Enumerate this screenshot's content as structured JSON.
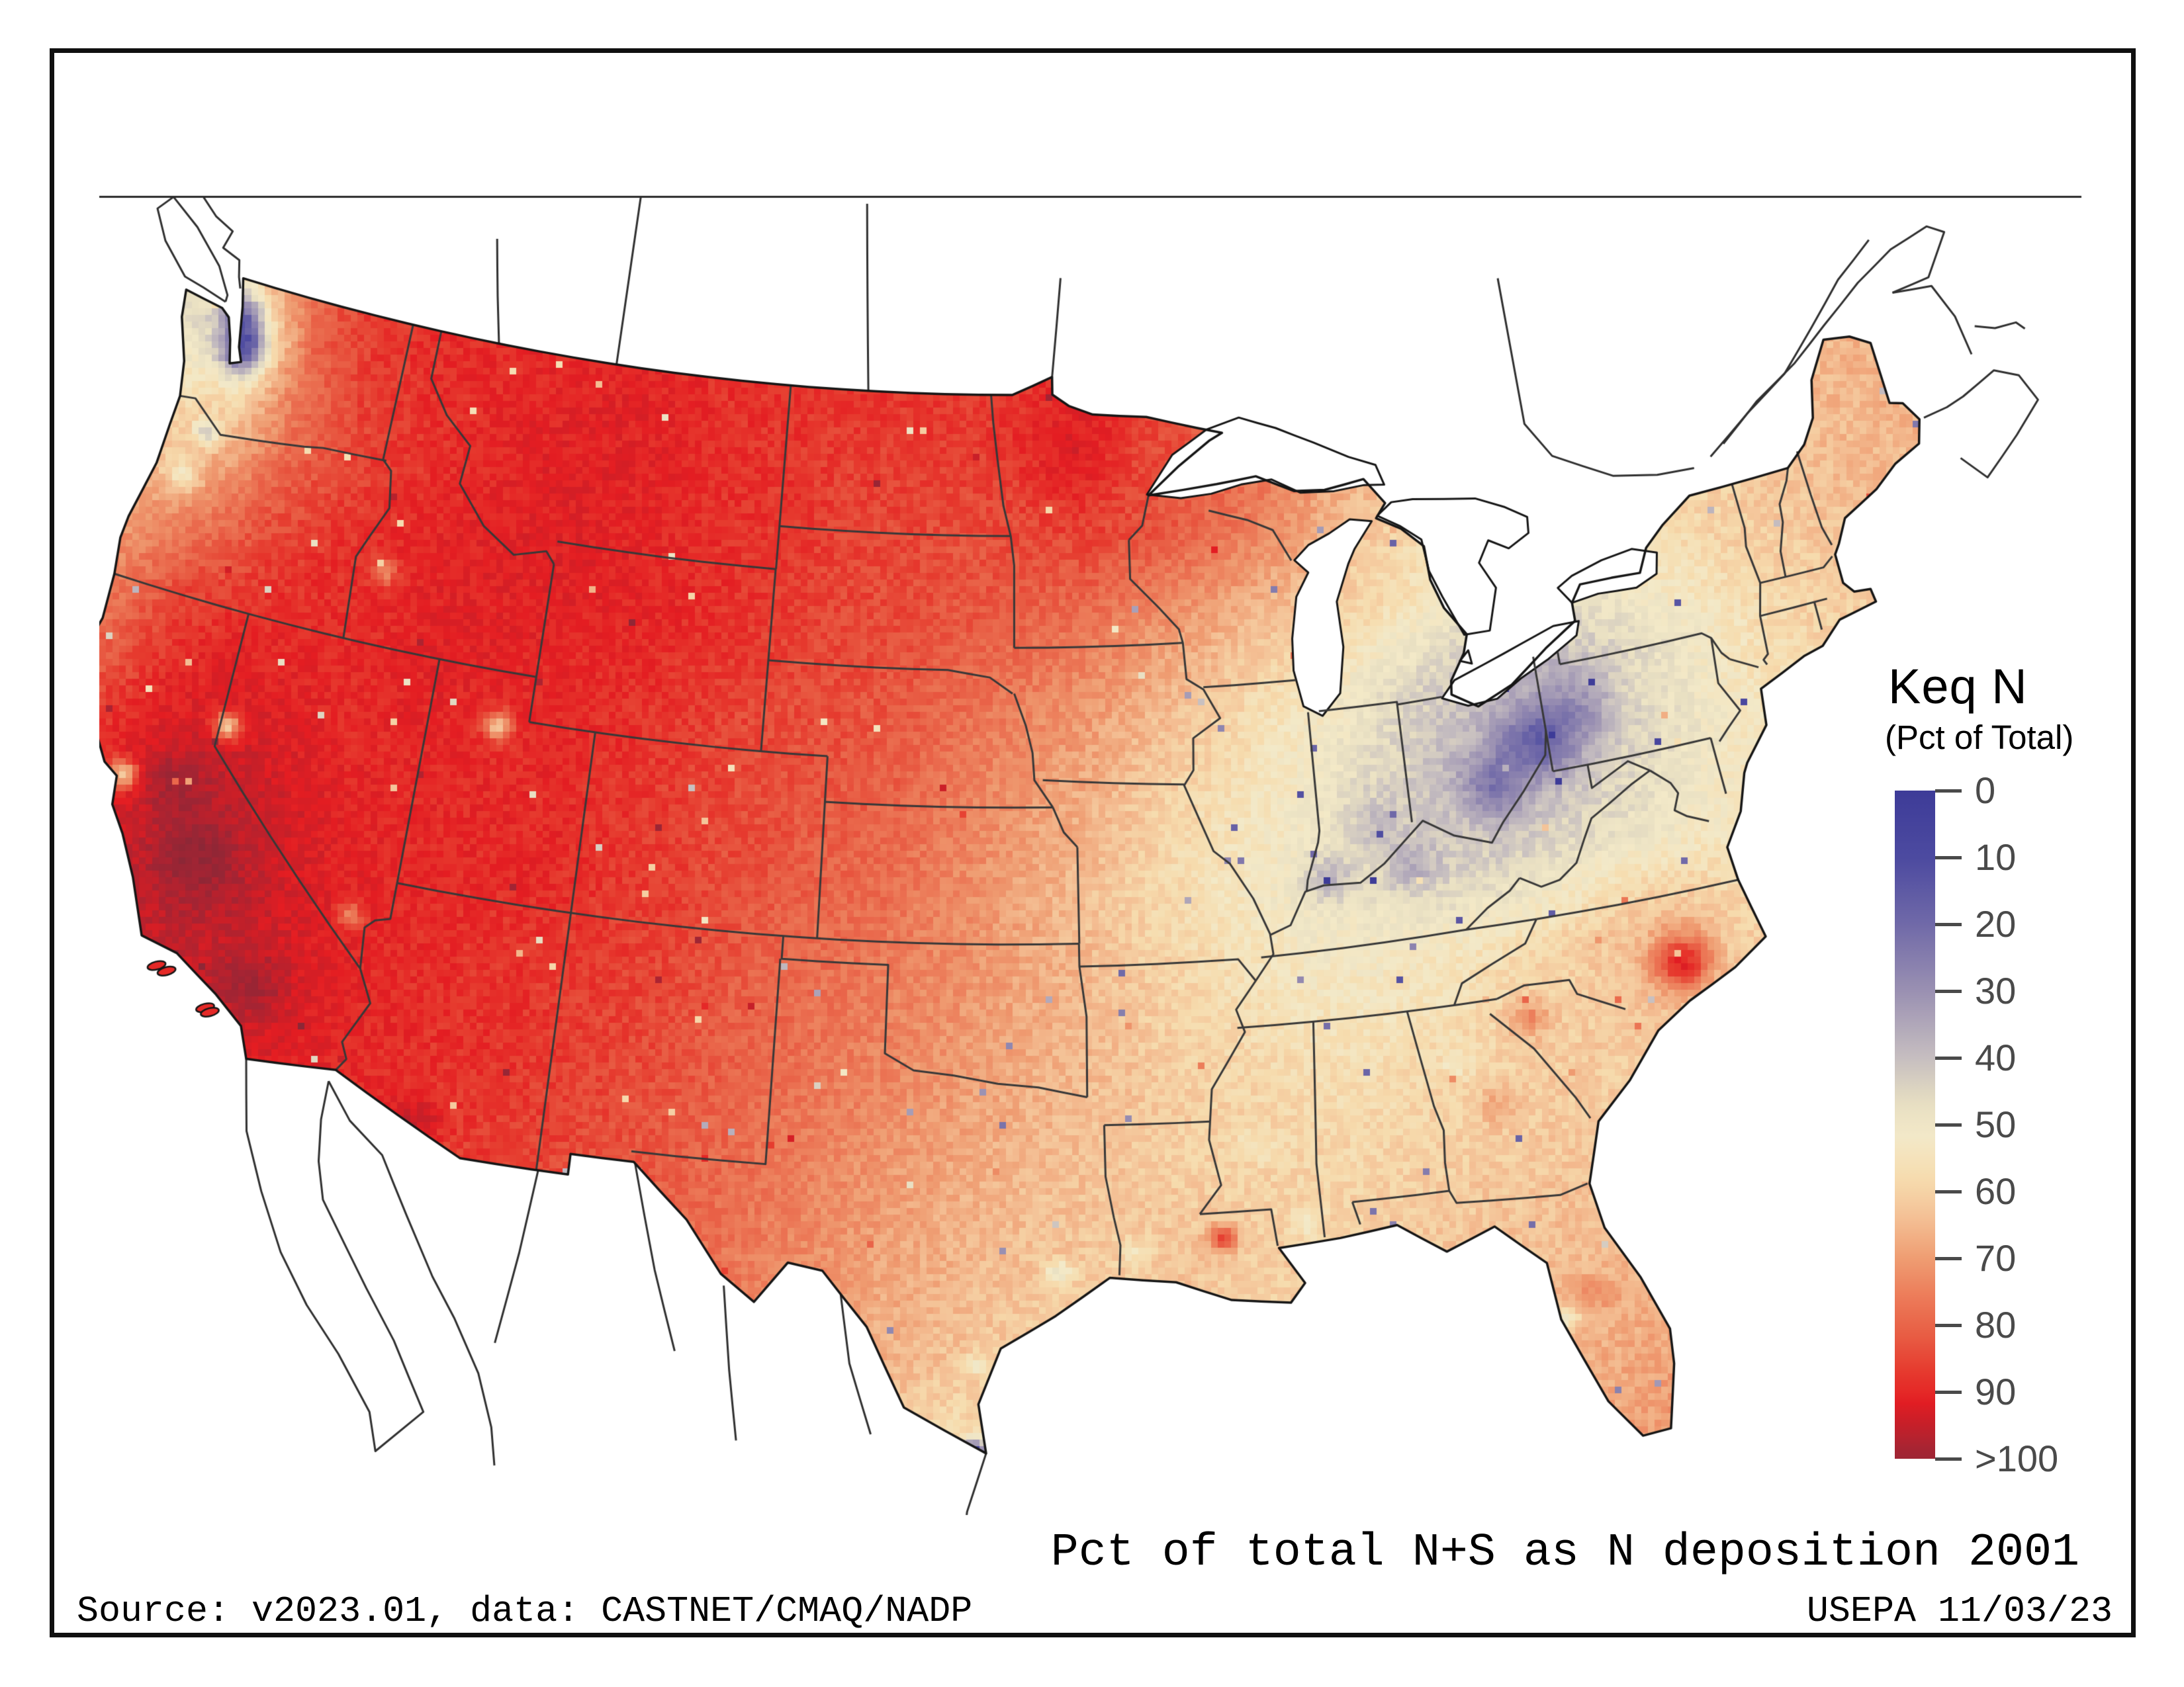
{
  "legend": {
    "title": "Keq N",
    "subtitle": "(Pct of Total)",
    "ticks": [
      {
        "label": "0"
      },
      {
        "label": "10"
      },
      {
        "label": "20"
      },
      {
        "label": "30"
      },
      {
        "label": "40"
      },
      {
        "label": "50"
      },
      {
        "label": "60"
      },
      {
        "label": "70"
      },
      {
        "label": "80"
      },
      {
        "label": "90"
      },
      {
        "label": ">100"
      }
    ]
  },
  "captions": {
    "map_title": "Pct of total N+S as N deposition 2001",
    "source": "Source: v2023.01, data: CASTNET/CMAQ/NADP",
    "agency": "USEPA 11/03/23"
  },
  "chart_data": {
    "type": "heatmap",
    "title": "Pct of total N+S as N deposition 2001",
    "variable": "Keq N (Pct of Total)",
    "units": "percent",
    "year": "2001",
    "legend_range": [
      "0",
      ">100"
    ],
    "color_scale": [
      [
        0,
        "#3d3b98"
      ],
      [
        10,
        "#4c4aa0"
      ],
      [
        20,
        "#7069a8"
      ],
      [
        30,
        "#9a90b2"
      ],
      [
        40,
        "#c6bec0"
      ],
      [
        47,
        "#e8dfc2"
      ],
      [
        52,
        "#f3e9c8"
      ],
      [
        58,
        "#f6dcae"
      ],
      [
        64,
        "#f4c095"
      ],
      [
        70,
        "#ef9d72"
      ],
      [
        76,
        "#ec7a58"
      ],
      [
        82,
        "#e85a42"
      ],
      [
        87,
        "#e63a2e"
      ],
      [
        92,
        "#e41d22"
      ],
      [
        97,
        "#c81f28"
      ],
      [
        103,
        "#a52433"
      ],
      [
        110,
        "#8c2736"
      ]
    ],
    "grid": {
      "lon_start": -126,
      "lon_step": 2,
      "lat_start": 50,
      "lat_step": -2,
      "values_rows_north_to_south": [
        [
          55,
          60,
          72,
          85,
          88,
          90,
          90,
          90,
          90,
          90,
          88,
          88,
          88,
          88,
          88,
          89,
          90,
          88,
          84,
          80,
          74,
          68,
          64,
          60,
          60,
          61,
          62,
          62,
          64,
          65,
          65
        ],
        [
          50,
          45,
          55,
          80,
          87,
          89,
          90,
          91,
          92,
          91,
          89,
          88,
          87,
          87,
          87,
          88,
          89,
          86,
          82,
          78,
          72,
          66,
          62,
          59,
          58,
          60,
          62,
          63,
          65,
          66,
          66
        ],
        [
          55,
          58,
          62,
          78,
          85,
          88,
          90,
          92,
          92,
          91,
          89,
          88,
          86,
          85,
          84,
          85,
          86,
          83,
          79,
          73,
          66,
          61,
          57,
          55,
          57,
          59,
          61,
          63,
          65,
          66,
          66
        ],
        [
          62,
          68,
          75,
          84,
          88,
          90,
          92,
          92,
          92,
          91,
          89,
          87,
          85,
          84,
          82,
          80,
          77,
          72,
          68,
          64,
          60,
          56,
          50,
          48,
          52,
          56,
          60,
          62,
          64,
          65,
          65
        ],
        [
          70,
          76,
          86,
          89,
          90,
          90,
          92,
          91,
          90,
          89,
          87,
          85,
          84,
          82,
          78,
          74,
          70,
          65,
          60,
          55,
          50,
          44,
          40,
          39,
          45,
          50,
          56,
          60,
          62,
          64,
          64
        ],
        [
          75,
          82,
          90,
          94,
          92,
          90,
          91,
          90,
          90,
          88,
          86,
          84,
          82,
          80,
          75,
          70,
          66,
          60,
          56,
          52,
          46,
          40,
          36,
          40,
          45,
          50,
          55,
          58,
          60,
          62,
          62
        ],
        [
          78,
          88,
          95,
          99,
          96,
          92,
          90,
          90,
          90,
          88,
          86,
          83,
          80,
          78,
          73,
          68,
          63,
          58,
          54,
          50,
          47,
          44,
          44,
          47,
          50,
          53,
          56,
          58,
          60,
          61,
          61
        ],
        [
          80,
          90,
          96,
          99,
          97,
          93,
          90,
          89,
          88,
          87,
          85,
          81,
          78,
          75,
          72,
          68,
          64,
          60,
          56,
          53,
          53,
          55,
          58,
          62,
          66,
          60,
          58,
          59,
          60,
          60,
          60
        ],
        [
          80,
          88,
          95,
          97,
          96,
          93,
          90,
          89,
          88,
          86,
          84,
          80,
          77,
          74,
          70,
          67,
          64,
          61,
          59,
          57,
          57,
          59,
          61,
          62,
          63,
          61,
          60,
          60,
          60,
          60,
          60
        ],
        [
          78,
          85,
          92,
          95,
          95,
          92,
          90,
          88,
          87,
          85,
          82,
          79,
          75,
          71,
          68,
          65,
          63,
          61,
          60,
          59,
          60,
          61,
          62,
          61,
          60,
          60,
          60,
          60,
          60,
          60,
          60
        ],
        [
          75,
          82,
          90,
          92,
          92,
          90,
          88,
          86,
          85,
          83,
          80,
          77,
          73,
          69,
          66,
          63,
          62,
          63,
          61,
          61,
          62,
          63,
          64,
          64,
          62,
          61,
          60,
          60,
          60,
          60,
          60
        ],
        [
          72,
          80,
          88,
          90,
          90,
          88,
          86,
          85,
          84,
          82,
          78,
          75,
          71,
          67,
          63,
          61,
          61,
          61,
          61,
          61,
          62,
          64,
          66,
          67,
          64,
          62,
          61,
          60,
          60,
          60,
          60
        ],
        [
          70,
          78,
          85,
          88,
          88,
          86,
          84,
          83,
          82,
          80,
          76,
          72,
          68,
          62,
          57,
          59,
          60,
          60,
          60,
          61,
          62,
          65,
          68,
          70,
          66,
          63,
          61,
          60,
          60,
          60,
          60
        ],
        [
          68,
          76,
          84,
          86,
          86,
          84,
          82,
          81,
          80,
          78,
          74,
          70,
          66,
          60,
          55,
          58,
          59,
          60,
          60,
          60,
          62,
          66,
          70,
          72,
          68,
          64,
          61,
          60,
          60,
          60,
          60
        ]
      ]
    },
    "anomalies_lon_lat_delta_sigma": [
      [
        -122.35,
        47.55,
        -42,
        0.55
      ],
      [
        -122.7,
        48.3,
        -28,
        0.45
      ],
      [
        -122.75,
        45.55,
        -18,
        0.3
      ],
      [
        -123.1,
        44.5,
        -14,
        0.4
      ],
      [
        -122.35,
        37.85,
        -33,
        0.3
      ],
      [
        -119.8,
        39.5,
        -32,
        0.28
      ],
      [
        -111.95,
        40.8,
        -26,
        0.3
      ],
      [
        -116.2,
        43.6,
        -14,
        0.28
      ],
      [
        -115.15,
        36.1,
        -16,
        0.25
      ],
      [
        -119.7,
        36.5,
        9,
        0.9
      ],
      [
        -120.9,
        38.0,
        7,
        0.6
      ],
      [
        -117.4,
        34.1,
        9,
        0.7
      ],
      [
        -112.4,
        32.0,
        9,
        0.45
      ],
      [
        -94.6,
        47.7,
        5,
        0.9
      ],
      [
        -80.75,
        40.45,
        -21,
        0.8
      ],
      [
        -82.3,
        39.6,
        -14,
        0.65
      ],
      [
        -85.0,
        38.1,
        -9,
        0.55
      ],
      [
        -87.45,
        38.1,
        -11,
        0.5
      ],
      [
        -86.0,
        39.1,
        -7,
        0.6
      ],
      [
        -79.3,
        41.0,
        -9,
        0.75
      ],
      [
        -77.9,
        35.05,
        28,
        0.55
      ],
      [
        -82.3,
        34.5,
        13,
        0.4
      ],
      [
        -83.5,
        32.7,
        7,
        0.4
      ],
      [
        -91.05,
        30.45,
        22,
        0.28
      ],
      [
        -81.65,
        28.35,
        7,
        0.35
      ],
      [
        -82.55,
        27.9,
        -14,
        0.25
      ],
      [
        -97.45,
        25.98,
        -52,
        0.22
      ],
      [
        -95.3,
        29.85,
        -13,
        0.25
      ],
      [
        -97.4,
        27.85,
        -10,
        0.2
      ],
      [
        -93.3,
        30.2,
        -8,
        0.3
      ],
      [
        -90.1,
        32.4,
        -6,
        0.35
      ],
      [
        -88.8,
        30.6,
        -8,
        0.3
      ],
      [
        -84.4,
        33.75,
        -6,
        0.3
      ]
    ]
  }
}
